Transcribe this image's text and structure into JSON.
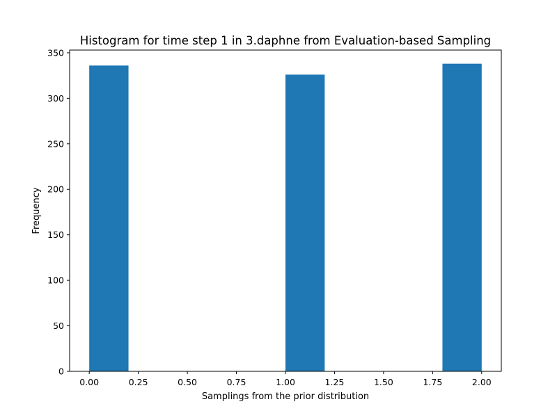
{
  "chart_data": {
    "type": "bar",
    "title": "Histogram for time step 1 in 3.daphne from Evaluation-based Sampling",
    "xlabel": "Samplings from the prior distribution",
    "ylabel": "Frequency",
    "xlim": [
      -0.1,
      2.1
    ],
    "ylim": [
      0,
      353
    ],
    "bars": [
      {
        "x0": 0.0,
        "x1": 0.2,
        "value": 336
      },
      {
        "x0": 1.0,
        "x1": 1.2,
        "value": 326
      },
      {
        "x0": 1.8,
        "x1": 2.0,
        "value": 338
      }
    ],
    "xticks": [
      0.0,
      0.25,
      0.5,
      0.75,
      1.0,
      1.25,
      1.5,
      1.75,
      2.0
    ],
    "xtick_labels": [
      "0.00",
      "0.25",
      "0.50",
      "0.75",
      "1.00",
      "1.25",
      "1.50",
      "1.75",
      "2.00"
    ],
    "yticks": [
      0,
      50,
      100,
      150,
      200,
      250,
      300,
      350
    ],
    "ytick_labels": [
      "0",
      "50",
      "100",
      "150",
      "200",
      "250",
      "300",
      "350"
    ],
    "grid": false,
    "legend": "none",
    "bar_color": "#1f77b4"
  }
}
